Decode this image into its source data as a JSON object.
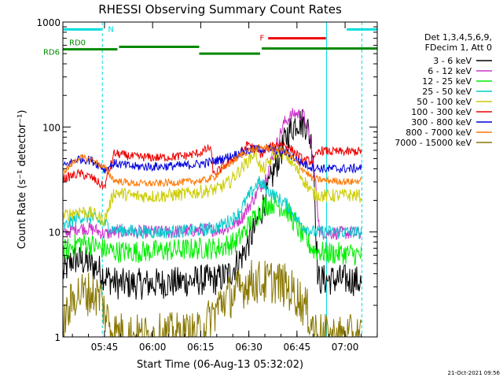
{
  "chart_data": {
    "type": "line",
    "title": "RHESSI Observing Summary Count Rates",
    "xlabel": "Start Time (06-Aug-13 05:32:02)",
    "ylabel": "Count Rate (s⁻¹ detector⁻¹)",
    "y_scale": "log",
    "ylim": [
      1,
      1000
    ],
    "x_unit": "minutes after 05:32:02",
    "xlim": [
      0,
      98
    ],
    "x_ticks": [
      {
        "label": "05:45",
        "x": 12.97
      },
      {
        "label": "06:00",
        "x": 27.97
      },
      {
        "label": "06:15",
        "x": 42.97
      },
      {
        "label": "06:30",
        "x": 57.97
      },
      {
        "label": "06:45",
        "x": 72.97
      },
      {
        "label": "07:00",
        "x": 87.97
      }
    ],
    "y_ticks": [
      {
        "label": "1",
        "value": 1
      },
      {
        "label": "10",
        "value": 10
      },
      {
        "label": "100",
        "value": 100
      },
      {
        "label": "1000",
        "value": 1000
      }
    ],
    "legend_header": [
      "Det 1,3,4,5,6,9,",
      "FDecim 1, Att 0"
    ],
    "legend_placement": "right",
    "timestamp": "21-Oct-2021 09:56",
    "series": [
      {
        "name": "3 - 6 keV",
        "color": "#000000",
        "band": 0.35,
        "points": [
          [
            0,
            4
          ],
          [
            3,
            5.5
          ],
          [
            7,
            5.2
          ],
          [
            11,
            4.5
          ],
          [
            13,
            3.8
          ],
          [
            17,
            3.2
          ],
          [
            25,
            3.2
          ],
          [
            35,
            3.3
          ],
          [
            44,
            3.5
          ],
          [
            48,
            3.5
          ],
          [
            52,
            4
          ],
          [
            56,
            6
          ],
          [
            60,
            11
          ],
          [
            63,
            20
          ],
          [
            66,
            40
          ],
          [
            70,
            85
          ],
          [
            73,
            115
          ],
          [
            76,
            105
          ],
          [
            78,
            60
          ],
          [
            79.5,
            3.5
          ],
          [
            82,
            3.5
          ],
          [
            90,
            3.5
          ],
          [
            93,
            3.3
          ]
        ]
      },
      {
        "name": "6 - 12 keV",
        "color": "#cc33cc",
        "band": 0.15,
        "points": [
          [
            0,
            9.5
          ],
          [
            5,
            11
          ],
          [
            10,
            10.5
          ],
          [
            13,
            9.5
          ],
          [
            16,
            10
          ],
          [
            25,
            10
          ],
          [
            34,
            10
          ],
          [
            44,
            10.5
          ],
          [
            48,
            10.5
          ],
          [
            52,
            11
          ],
          [
            56,
            14
          ],
          [
            60,
            22
          ],
          [
            63,
            32
          ],
          [
            66,
            60
          ],
          [
            69,
            110
          ],
          [
            72,
            135
          ],
          [
            75,
            130
          ],
          [
            77,
            80
          ],
          [
            79,
            25
          ],
          [
            80,
            10
          ],
          [
            82,
            9.8
          ],
          [
            90,
            9.8
          ],
          [
            93,
            9.5
          ]
        ]
      },
      {
        "name": "12 - 25 keV",
        "color": "#00ee00",
        "band": 0.25,
        "points": [
          [
            0,
            6.5
          ],
          [
            5,
            8
          ],
          [
            9,
            7.5
          ],
          [
            13,
            6.8
          ],
          [
            16,
            6.5
          ],
          [
            25,
            6.5
          ],
          [
            34,
            6.7
          ],
          [
            44,
            7
          ],
          [
            48,
            7
          ],
          [
            54,
            8
          ],
          [
            60,
            14
          ],
          [
            63,
            18
          ],
          [
            66,
            19
          ],
          [
            70,
            16
          ],
          [
            74,
            10
          ],
          [
            78,
            6.8
          ],
          [
            82,
            6.3
          ],
          [
            90,
            6.2
          ],
          [
            93,
            6
          ]
        ]
      },
      {
        "name": "25 - 50 keV",
        "color": "#00cccc",
        "band": 0.15,
        "points": [
          [
            0,
            11
          ],
          [
            5,
            14
          ],
          [
            9,
            13.5
          ],
          [
            13,
            12
          ],
          [
            16,
            10.5
          ],
          [
            25,
            10
          ],
          [
            34,
            10
          ],
          [
            44,
            10.5
          ],
          [
            48,
            11
          ],
          [
            54,
            14
          ],
          [
            58,
            22
          ],
          [
            61,
            30
          ],
          [
            63,
            27
          ],
          [
            66,
            22
          ],
          [
            70,
            18
          ],
          [
            74,
            12
          ],
          [
            78,
            10
          ],
          [
            82,
            10
          ],
          [
            90,
            10
          ],
          [
            93,
            9.8
          ]
        ]
      },
      {
        "name": "50 - 100 keV",
        "color": "#cccc00",
        "band": 0.15,
        "points": [
          [
            0,
            14
          ],
          [
            5,
            16
          ],
          [
            9,
            15
          ],
          [
            13,
            13
          ],
          [
            16,
            24
          ],
          [
            22,
            22
          ],
          [
            30,
            22
          ],
          [
            38,
            23
          ],
          [
            44,
            24.5
          ],
          [
            48,
            25.5
          ],
          [
            52,
            30
          ],
          [
            57,
            45
          ],
          [
            60,
            58
          ],
          [
            62,
            38
          ],
          [
            64,
            45
          ],
          [
            67,
            60
          ],
          [
            70,
            52
          ],
          [
            74,
            35
          ],
          [
            78,
            23
          ],
          [
            82,
            22
          ],
          [
            90,
            22.5
          ],
          [
            93,
            22
          ]
        ]
      },
      {
        "name": "100 - 300 keV",
        "color": "#ee0000",
        "band": 0.1,
        "points": [
          [
            0,
            32
          ],
          [
            5,
            36
          ],
          [
            9,
            33
          ],
          [
            12,
            28
          ],
          [
            13,
            27
          ],
          [
            16,
            56
          ],
          [
            22,
            52
          ],
          [
            30,
            51
          ],
          [
            38,
            53
          ],
          [
            43,
            57
          ],
          [
            46,
            64
          ],
          [
            47,
            35
          ],
          [
            50,
            42
          ],
          [
            55,
            55
          ],
          [
            58,
            70
          ],
          [
            60,
            60
          ],
          [
            62,
            55
          ],
          [
            65,
            65
          ],
          [
            68,
            70
          ],
          [
            71,
            62
          ],
          [
            75,
            48
          ],
          [
            78,
            47
          ],
          [
            80,
            60
          ],
          [
            84,
            58
          ],
          [
            90,
            58
          ],
          [
            93,
            59
          ]
        ]
      },
      {
        "name": "300 - 800 keV",
        "color": "#0000dd",
        "band": 0.1,
        "points": [
          [
            0,
            42
          ],
          [
            5,
            50
          ],
          [
            9,
            48
          ],
          [
            12,
            42
          ],
          [
            13,
            39
          ],
          [
            16,
            45
          ],
          [
            22,
            42
          ],
          [
            30,
            42
          ],
          [
            38,
            43
          ],
          [
            44,
            45
          ],
          [
            48,
            48
          ],
          [
            54,
            55
          ],
          [
            60,
            62
          ],
          [
            65,
            62
          ],
          [
            70,
            57
          ],
          [
            74,
            46
          ],
          [
            78,
            41
          ],
          [
            82,
            40
          ],
          [
            90,
            40
          ],
          [
            93,
            41
          ]
        ]
      },
      {
        "name": "800 - 7000 keV",
        "color": "#ff7700",
        "band": 0.08,
        "points": [
          [
            0,
            37
          ],
          [
            5,
            51
          ],
          [
            9,
            49
          ],
          [
            12,
            43
          ],
          [
            13,
            41
          ],
          [
            16,
            31
          ],
          [
            22,
            29
          ],
          [
            30,
            29
          ],
          [
            38,
            30
          ],
          [
            44,
            31
          ],
          [
            47,
            33
          ],
          [
            50,
            40
          ],
          [
            54,
            50
          ],
          [
            58,
            60
          ],
          [
            62,
            64
          ],
          [
            66,
            62
          ],
          [
            70,
            57
          ],
          [
            74,
            42
          ],
          [
            78,
            32
          ],
          [
            82,
            31
          ],
          [
            90,
            30
          ],
          [
            93,
            31
          ]
        ]
      },
      {
        "name": "7000 - 15000 keV",
        "color": "#887700",
        "band": 0.5,
        "points": [
          [
            0,
            1.3
          ],
          [
            4,
            2.6
          ],
          [
            9,
            2.6
          ],
          [
            12,
            2.4
          ],
          [
            13,
            1.7
          ],
          [
            16,
            1.1
          ],
          [
            25,
            1
          ],
          [
            34,
            1.05
          ],
          [
            42,
            1.05
          ],
          [
            46,
            1.5
          ],
          [
            50,
            2.3
          ],
          [
            54,
            2.6
          ],
          [
            58,
            3.4
          ],
          [
            62,
            3.3
          ],
          [
            66,
            3.4
          ],
          [
            69,
            3.1
          ],
          [
            73,
            2.5
          ],
          [
            76,
            1.8
          ],
          [
            79,
            1.1
          ],
          [
            82,
            1
          ],
          [
            90,
            1
          ],
          [
            93,
            1
          ]
        ]
      }
    ],
    "annotations": [
      {
        "label": "N",
        "color": "#00dddd",
        "segments": [
          {
            "from": 0,
            "to": 12.1,
            "level": 850
          },
          {
            "from": 88.5,
            "to": 98,
            "level": 850
          }
        ]
      },
      {
        "label": "F",
        "color": "#ee0000",
        "segments": [
          {
            "from": 64,
            "to": 82,
            "level": 700
          }
        ]
      },
      {
        "label": "RD0",
        "color": "#008800",
        "segments": [
          {
            "from": 0,
            "to": 17,
            "level": 550
          },
          {
            "from": 17.5,
            "to": 42.5,
            "level": 580
          },
          {
            "from": 42.5,
            "to": 61.5,
            "level": 500
          },
          {
            "from": 62,
            "to": 98,
            "level": 560
          }
        ]
      },
      {
        "label": "RD6",
        "color": "#008800",
        "segments": []
      }
    ],
    "vertical_markers": [
      {
        "x": 0,
        "color": "#00dddd",
        "style": "solid"
      },
      {
        "x": 12.3,
        "color": "#00dddd",
        "style": "dashed"
      },
      {
        "x": 82.2,
        "color": "#00dddd",
        "style": "solid"
      },
      {
        "x": 93.2,
        "color": "#00dddd",
        "style": "dashed"
      }
    ]
  }
}
